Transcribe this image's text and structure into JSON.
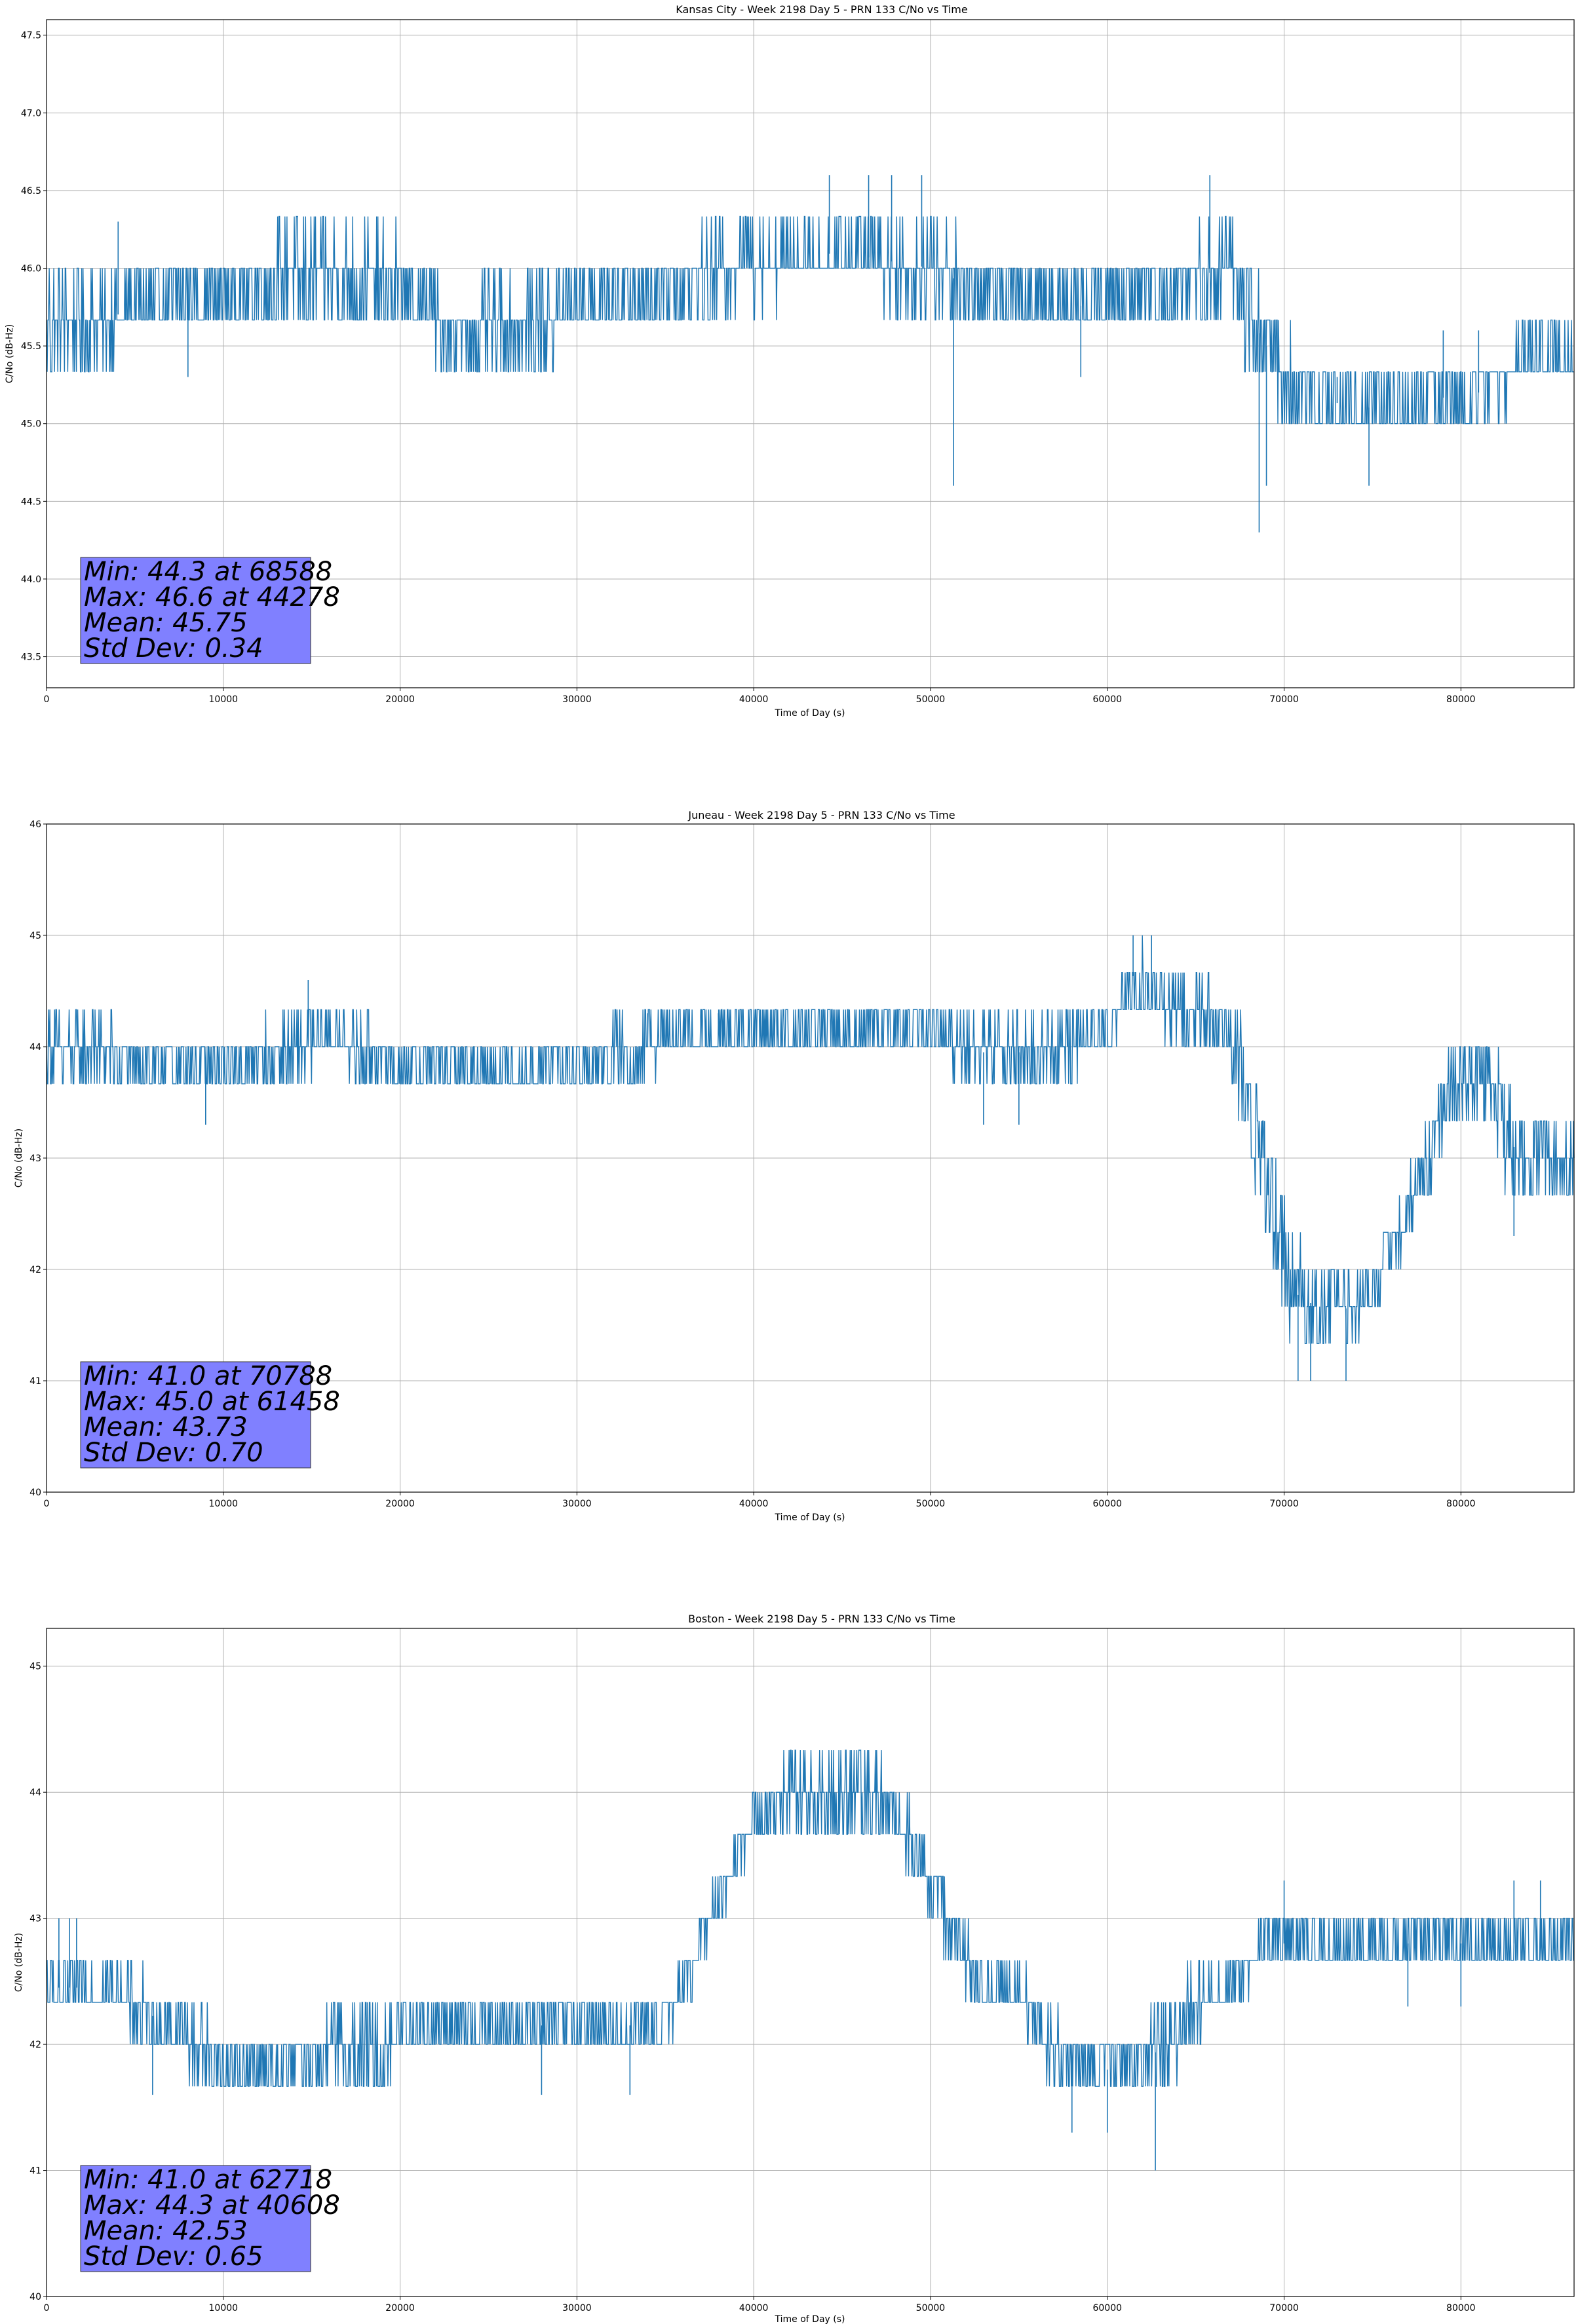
{
  "figure": {
    "series_color": "#1f77b4",
    "stats_box_color": "#8080ff"
  },
  "chart_data": [
    {
      "type": "line",
      "title": "Kansas City - Week 2198 Day 5 - PRN 133 C/No vs Time",
      "xlabel": "Time of Day (s)",
      "ylabel": "C/No (dB-Hz)",
      "xlim": [
        0,
        86400
      ],
      "ylim": [
        43.3,
        47.6
      ],
      "xticks": [
        0,
        10000,
        20000,
        30000,
        40000,
        50000,
        60000,
        70000,
        80000
      ],
      "yticks": [
        43.5,
        44.0,
        44.5,
        45.0,
        45.5,
        46.0,
        46.5,
        47.0,
        47.5
      ],
      "ytick_decimals": 1,
      "grid": true,
      "stats": {
        "min": "Min: 44.3 at 68588",
        "max": "Max: 46.6 at 44278",
        "mean": "Mean: 45.75",
        "std": "Std Dev: 0.34"
      },
      "series": [
        {
          "name": "C/No",
          "x": [
            0,
            3000,
            5000,
            8000,
            10000,
            15000,
            20000,
            21000,
            23000,
            25000,
            28000,
            30000,
            33000,
            36000,
            40000,
            45000,
            50000,
            53000,
            55000,
            58000,
            61000,
            63000,
            65000,
            67000,
            68000,
            70000,
            72000,
            75000,
            78000,
            81000,
            84000,
            86400
          ],
          "lo": [
            45.3,
            45.3,
            45.5,
            45.6,
            45.6,
            45.6,
            45.6,
            45.5,
            45.4,
            45.3,
            45.3,
            45.6,
            45.6,
            45.6,
            45.8,
            45.9,
            45.7,
            45.6,
            45.5,
            45.5,
            45.6,
            45.6,
            45.7,
            45.7,
            45.4,
            45.0,
            45.0,
            44.9,
            45.0,
            45.0,
            45.3,
            45.3
          ],
          "hi": [
            46.0,
            46.0,
            46.0,
            46.0,
            46.1,
            46.3,
            46.2,
            46.0,
            45.8,
            45.9,
            46.0,
            46.0,
            46.1,
            46.2,
            46.3,
            46.3,
            46.3,
            46.1,
            46.0,
            46.0,
            46.0,
            46.1,
            46.2,
            46.3,
            46.0,
            45.6,
            45.3,
            45.3,
            45.3,
            45.4,
            45.6,
            45.6
          ],
          "spikes": [
            [
              4050,
              46.3
            ],
            [
              8000,
              45.3
            ],
            [
              44278,
              46.6
            ],
            [
              46500,
              46.6
            ],
            [
              47800,
              46.6
            ],
            [
              49500,
              46.6
            ],
            [
              51300,
              44.6
            ],
            [
              58500,
              45.3
            ],
            [
              65800,
              46.6
            ],
            [
              68588,
              44.3
            ],
            [
              69000,
              44.6
            ],
            [
              73000,
              45.3
            ],
            [
              74800,
              44.6
            ],
            [
              79000,
              45.6
            ],
            [
              81000,
              45.6
            ]
          ]
        }
      ]
    },
    {
      "type": "line",
      "title": "Juneau - Week 2198 Day 5 - PRN 133 C/No vs Time",
      "xlabel": "Time of Day (s)",
      "ylabel": "C/No (dB-Hz)",
      "xlim": [
        0,
        86400
      ],
      "ylim": [
        40,
        46
      ],
      "xticks": [
        0,
        10000,
        20000,
        30000,
        40000,
        50000,
        60000,
        70000,
        80000
      ],
      "yticks": [
        40,
        41,
        42,
        43,
        44,
        45,
        46
      ],
      "ytick_decimals": 0,
      "grid": true,
      "stats": {
        "min": "Min: 41.0 at 70788",
        "max": "Max: 45.0 at 61458",
        "mean": "Mean: 43.73",
        "std": "Std Dev: 0.70"
      },
      "series": [
        {
          "name": "C/No",
          "x": [
            0,
            3000,
            5000,
            9000,
            11000,
            14000,
            16000,
            18000,
            20000,
            25000,
            30000,
            33000,
            35000,
            40000,
            45000,
            50000,
            53000,
            57000,
            60000,
            61500,
            64000,
            66000,
            67500,
            68500,
            69500,
            70500,
            72000,
            73500,
            75000,
            76500,
            78000,
            79500,
            81000,
            83000,
            85000,
            86400
          ],
          "lo": [
            43.6,
            43.6,
            43.6,
            43.6,
            43.6,
            43.6,
            44.0,
            43.6,
            43.6,
            43.6,
            43.6,
            43.6,
            43.8,
            44.0,
            44.0,
            44.0,
            43.6,
            43.6,
            44.0,
            44.3,
            44.0,
            44.0,
            43.3,
            42.6,
            42.0,
            41.3,
            41.3,
            41.3,
            41.6,
            42.0,
            42.6,
            43.3,
            43.3,
            42.6,
            42.6,
            42.6
          ],
          "hi": [
            44.3,
            44.3,
            44.1,
            44.0,
            44.1,
            44.3,
            44.3,
            44.3,
            44.0,
            44.0,
            44.0,
            44.3,
            44.3,
            44.3,
            44.3,
            44.3,
            44.3,
            44.3,
            44.3,
            45.0,
            44.6,
            44.6,
            44.3,
            43.6,
            43.0,
            42.3,
            42.0,
            42.0,
            42.0,
            42.6,
            43.3,
            44.0,
            44.3,
            43.6,
            43.3,
            43.3
          ],
          "spikes": [
            [
              9000,
              43.3
            ],
            [
              14800,
              44.6
            ],
            [
              34000,
              44.3
            ],
            [
              38000,
              44.3
            ],
            [
              53000,
              43.3
            ],
            [
              55000,
              43.3
            ],
            [
              61458,
              45.0
            ],
            [
              62500,
              45.0
            ],
            [
              70788,
              41.0
            ],
            [
              71500,
              41.0
            ],
            [
              73500,
              41.0
            ],
            [
              83000,
              42.3
            ]
          ]
        }
      ]
    },
    {
      "type": "line",
      "title": "Boston - Week 2198 Day 5 - PRN 133 C/No vs Time",
      "xlabel": "Time of Day (s)",
      "ylabel": "C/No (dB-Hz)",
      "xlim": [
        0,
        86400
      ],
      "ylim": [
        40,
        45.3
      ],
      "xticks": [
        0,
        10000,
        20000,
        30000,
        40000,
        50000,
        60000,
        70000,
        80000
      ],
      "yticks": [
        40,
        41,
        42,
        43,
        44,
        45
      ],
      "ytick_decimals": 0,
      "grid": true,
      "stats": {
        "min": "Min: 41.0 at 62718",
        "max": "Max: 44.3 at 40608",
        "mean": "Mean: 42.53",
        "std": "Std Dev: 0.65"
      },
      "series": [
        {
          "name": "C/No",
          "x": [
            0,
            2000,
            4000,
            5000,
            7000,
            9000,
            10000,
            13000,
            16000,
            19000,
            20000,
            25000,
            30000,
            32000,
            35000,
            36000,
            37000,
            38000,
            39000,
            40000,
            42000,
            45000,
            47000,
            48000,
            50000,
            51000,
            53000,
            55000,
            57000,
            60000,
            63000,
            65000,
            67000,
            69000,
            72000,
            75000,
            80000,
            83000,
            86400
          ],
          "lo": [
            42.3,
            42.3,
            42.3,
            42.0,
            42.0,
            41.6,
            41.6,
            41.6,
            41.6,
            41.6,
            42.0,
            42.0,
            42.0,
            42.0,
            42.0,
            42.3,
            42.6,
            43.0,
            43.3,
            43.6,
            43.6,
            43.6,
            43.6,
            43.6,
            43.0,
            42.6,
            42.3,
            42.3,
            41.6,
            41.6,
            41.6,
            42.0,
            42.3,
            42.6,
            42.6,
            42.6,
            42.6,
            42.6,
            42.6
          ],
          "hi": [
            42.6,
            42.6,
            42.6,
            42.6,
            42.3,
            42.3,
            42.0,
            42.0,
            42.3,
            42.3,
            42.3,
            42.3,
            42.3,
            42.3,
            42.3,
            42.6,
            43.0,
            43.3,
            43.6,
            44.0,
            44.3,
            44.3,
            44.3,
            44.0,
            43.6,
            43.3,
            42.6,
            42.6,
            42.3,
            42.0,
            42.3,
            42.6,
            42.6,
            43.0,
            43.0,
            43.0,
            43.0,
            43.0,
            43.0
          ],
          "spikes": [
            [
              700,
              43.0
            ],
            [
              1300,
              43.0
            ],
            [
              1700,
              43.0
            ],
            [
              6000,
              41.6
            ],
            [
              28000,
              41.6
            ],
            [
              33000,
              41.6
            ],
            [
              58000,
              41.3
            ],
            [
              60000,
              41.3
            ],
            [
              62718,
              41.0
            ],
            [
              70000,
              43.3
            ],
            [
              77000,
              42.3
            ],
            [
              80000,
              42.3
            ],
            [
              83000,
              43.3
            ],
            [
              84500,
              43.3
            ]
          ]
        }
      ]
    }
  ]
}
